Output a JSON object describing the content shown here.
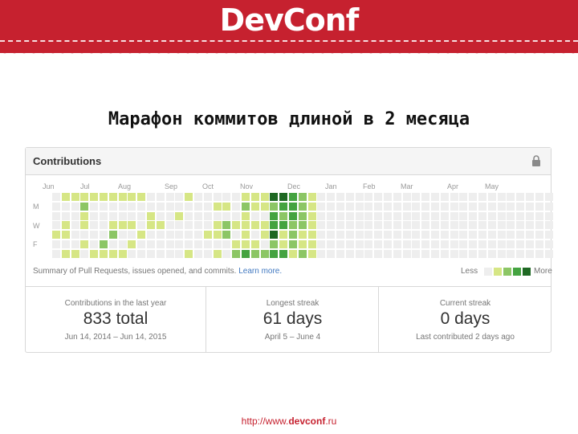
{
  "header": {
    "logo_text": "DevConf",
    "brand_color": "#c6212f"
  },
  "slide": {
    "title": "Марафон коммитов длиной в 2 месяца"
  },
  "card": {
    "title": "Contributions",
    "months": [
      "Jun",
      "Jul",
      "Aug",
      "Sep",
      "Oct",
      "Nov",
      "Dec",
      "Jan",
      "Feb",
      "Mar",
      "Apr",
      "May"
    ],
    "day_labels": [
      "M",
      "W",
      "F"
    ],
    "summary_text": "Summary of Pull Requests, issues opened, and commits.",
    "summary_link": "Learn more.",
    "legend_less": "Less",
    "legend_more": "More",
    "legend_colors": [
      "#eeeeee",
      "#d6e685",
      "#8cc665",
      "#44a340",
      "#1e6823"
    ],
    "grid_levels": [
      "0000100000000100000000",
      "1001101011002001012001",
      "1000001001001000000001",
      "1211010010001011301000",
      "1000001001001010010001",
      "1000021000000101001100",
      "1001201111001110101011",
      "1001001000101000111010",
      "1001010010000000000000",
      "1000100001001011101111",
      "0011000000000000100011",
      "0001000000000000000000",
      "0000000000100000001111",
      "0010000000001000000000",
      "1000001011001000000111",
      "0000000000101010100010",
      "0000100000001111011101",
      "0101101100101101111000",
      "0102200010111111111111",
      "0001012111211111111111",
      "1211113102122121210001",
      "1101012011111122212111",
      "1101102112121111111111",
      "4233423122111111111111",
      "4323113211111111111111",
      "3332221111211111111111",
      "2222112111111111111111",
      "1111111111111111111111",
      "0000000000000000000000",
      "0000000000000000000000",
      "0000000000000000000000",
      "0000000000000000000000",
      "0000000000000000000000",
      "0000000000000000000000",
      "0000000000000000000000",
      "0000000000000000000000",
      "0000000000000000000000",
      "0000000000000000000000",
      "0000000000000000000000",
      "0000000000000000000000",
      "0000000000000000000000",
      "0000000000000000000000",
      "0000000000000000000000",
      "0000000000000000000000",
      "0000000000000000000000",
      "0000000000000000000000",
      "0000000000000000000000",
      "0000000000000000000000",
      "0000000000000000000000",
      "0000000000000000000000",
      "0000000000000000000000",
      "0000000000000000000000",
      "0000000000000000000000"
    ],
    "stats": [
      {
        "label": "Contributions in the last year",
        "value": "833 total",
        "range": "Jun 14, 2014 – Jun 14, 2015"
      },
      {
        "label": "Longest streak",
        "value": "61 days",
        "range": "April 5 – June 4"
      },
      {
        "label": "Current streak",
        "value": "0 days",
        "range": "Last contributed 2 days ago"
      }
    ]
  },
  "footer": {
    "url_prefix": "http://www.",
    "url_domain": "devconf",
    "url_suffix": ".ru"
  }
}
